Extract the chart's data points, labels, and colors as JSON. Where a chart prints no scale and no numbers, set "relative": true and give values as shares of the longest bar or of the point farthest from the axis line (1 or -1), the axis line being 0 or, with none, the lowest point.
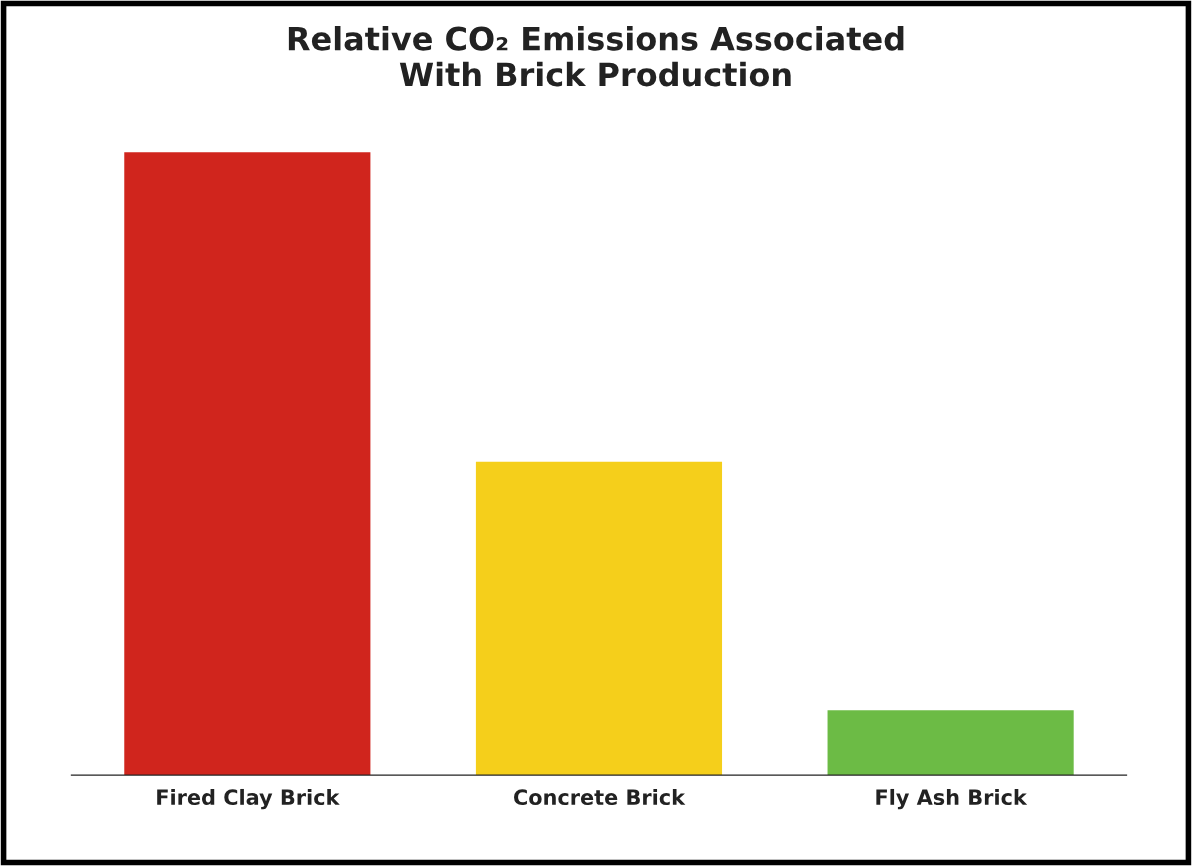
{
  "chart_data": {
    "type": "bar",
    "title": "Relative CO₂ Emissions Associated\nWith Brick Production",
    "categories": [
      "Fired Clay Brick",
      "Concrete Brick",
      "Fly Ash Brick"
    ],
    "values": [
      1,
      0.503,
      0.104
    ],
    "colors": [
      "#d0251d",
      "#f5cf1b",
      "#6cbb45"
    ],
    "relative": true
  }
}
